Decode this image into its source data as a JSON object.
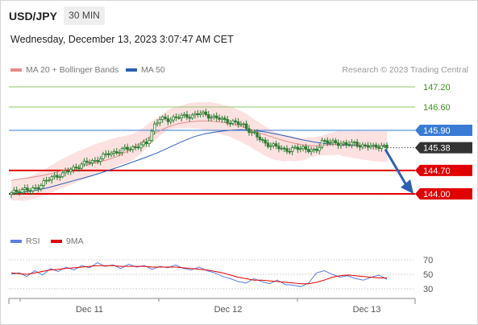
{
  "header": {
    "symbol": "USD/JPY",
    "timeframe": "30 MIN",
    "datetime": "Wednesday, December 13, 2023 3:07:47 AM CET",
    "credit": "Research © 2023 Trading Central"
  },
  "legend": {
    "ma20": "MA 20 + Bollinger Bands",
    "ma50": "MA 50",
    "rsi": "RSI",
    "ma9": "9MA"
  },
  "colors": {
    "ma20": "#e88a8a",
    "band": "#fbdcdc",
    "ma50": "#2d5fb5",
    "resistance_green": "#8fc66a",
    "pivot_blue": "#3a7bd5",
    "support_red": "#e00000",
    "arrow": "#2d5fb5",
    "rsi": "#5b7fe0",
    "ma9": "#e00000",
    "candle": "#2e7d32"
  },
  "chart_data": [
    {
      "type": "candlestick",
      "title": "USD/JPY 30 MIN",
      "x_ticks": [
        "Dec 11",
        "Dec 12",
        "Dec 13"
      ],
      "ylim": [
        143.45,
        147.45
      ],
      "levels": [
        {
          "value": "147.20",
          "kind": "resistance"
        },
        {
          "value": "146.60",
          "kind": "resistance"
        },
        {
          "value": "145.90",
          "kind": "pivot"
        },
        {
          "value": "145.38",
          "kind": "last"
        },
        {
          "value": "144.70",
          "kind": "support"
        },
        {
          "value": "144.00",
          "kind": "support"
        }
      ],
      "close_path": [
        144.0,
        144.1,
        144.15,
        144.08,
        144.2,
        144.35,
        144.45,
        144.55,
        144.6,
        144.7,
        144.8,
        144.9,
        144.95,
        145.0,
        145.1,
        145.2,
        145.25,
        145.3,
        145.35,
        145.4,
        145.45,
        145.5,
        146.05,
        146.25,
        146.2,
        146.28,
        146.3,
        146.32,
        146.35,
        146.4,
        146.38,
        146.3,
        146.25,
        146.2,
        146.15,
        146.1,
        146.05,
        145.85,
        145.7,
        145.55,
        145.45,
        145.4,
        145.35,
        145.3,
        145.35,
        145.4,
        145.3,
        145.25,
        145.6,
        145.55,
        145.5,
        145.52,
        145.48,
        145.5,
        145.45,
        145.42,
        145.4,
        145.45,
        145.38
      ],
      "ma20_path": [
        144.4,
        144.45,
        144.5,
        144.55,
        144.62,
        144.7,
        144.78,
        144.85,
        144.92,
        145.0,
        145.1,
        145.25,
        145.45,
        145.65,
        145.85,
        146.0,
        146.1,
        146.15,
        146.18,
        146.18,
        146.15,
        146.1,
        146.02,
        145.92,
        145.8,
        145.7,
        145.6,
        145.52,
        145.46,
        145.44,
        145.46,
        145.48,
        145.48,
        145.46,
        145.44,
        145.42,
        145.4
      ],
      "ma50_path": [
        144.0,
        144.05,
        144.1,
        144.18,
        144.28,
        144.38,
        144.48,
        144.58,
        144.7,
        144.82,
        144.95,
        145.08,
        145.22,
        145.38,
        145.55,
        145.7,
        145.8,
        145.86,
        145.9,
        145.92,
        145.9,
        145.85,
        145.78,
        145.7,
        145.62,
        145.55,
        145.5,
        145.47,
        145.45,
        145.44,
        145.43,
        145.42
      ],
      "forecast": {
        "from": 145.38,
        "to": 144.0
      }
    },
    {
      "type": "line",
      "title": "RSI",
      "ylim": [
        25,
        75
      ],
      "y_ticks": [
        "70",
        "50",
        "30"
      ],
      "series": [
        {
          "name": "RSI",
          "values": [
            50,
            52,
            47,
            55,
            49,
            58,
            54,
            60,
            56,
            62,
            59,
            66,
            61,
            63,
            58,
            64,
            60,
            62,
            57,
            61,
            59,
            63,
            58,
            56,
            60,
            55,
            52,
            47,
            44,
            40,
            38,
            44,
            40,
            37,
            42,
            36,
            35,
            33,
            38,
            52,
            55,
            50,
            46,
            48,
            44,
            42,
            46,
            49,
            43
          ]
        },
        {
          "name": "9MA",
          "values": [
            52,
            51,
            50,
            52,
            54,
            56,
            57,
            58,
            59,
            60,
            61,
            62,
            62,
            62,
            61,
            61,
            61,
            61,
            60,
            60,
            60,
            60,
            59,
            58,
            57,
            56,
            54,
            52,
            49,
            46,
            44,
            42,
            42,
            41,
            40,
            39,
            38,
            37,
            37,
            39,
            42,
            46,
            48,
            49,
            48,
            47,
            46,
            45,
            45
          ]
        }
      ]
    }
  ]
}
